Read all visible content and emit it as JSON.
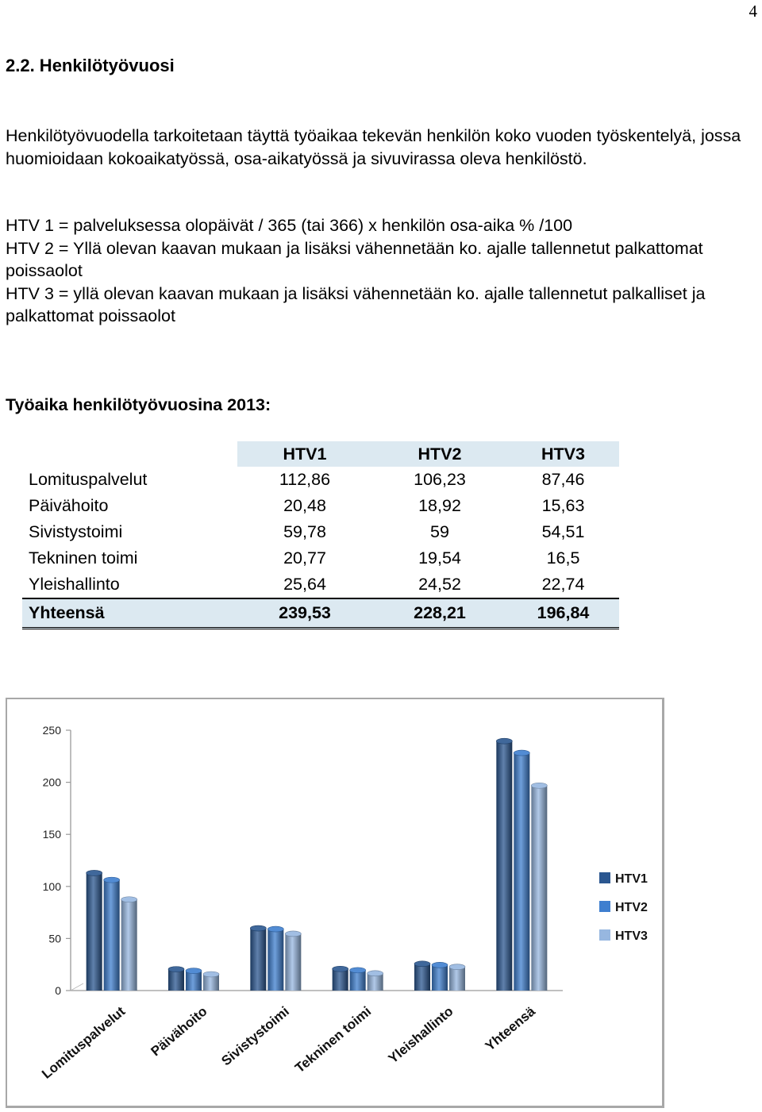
{
  "page_number": "4",
  "heading": "2.2. Henkilötyövuosi",
  "intro_paragraph": "Henkilötyövuodella tarkoitetaan täyttä työaikaa tekevän henkilön koko vuoden työskentelyä, jossa huomioidaan kokoaikatyössä, osa-aikatyössä ja sivuvirassa oleva henkilöstö.",
  "formulas": [
    "HTV 1 = palveluksessa olopäivät / 365 (tai 366) x henkilön osa-aika % /100",
    "HTV 2 = Yllä olevan kaavan mukaan ja lisäksi vähennetään ko. ajalle tallennetut palkattomat poissaolot",
    "HTV 3 = yllä olevan kaavan mukaan ja lisäksi vähennetään ko. ajalle tallennetut palkalliset ja palkattomat poissaolot"
  ],
  "table_title": "Työaika henkilötyövuosina 2013:",
  "table": {
    "headers": [
      "",
      "HTV1",
      "HTV2",
      "HTV3"
    ],
    "rows": [
      [
        "Lomituspalvelut",
        "112,86",
        "106,23",
        "87,46"
      ],
      [
        "Päivähoito",
        "20,48",
        "18,92",
        "15,63"
      ],
      [
        "Sivistystoimi",
        "59,78",
        "59",
        "54,51"
      ],
      [
        "Tekninen toimi",
        "20,77",
        "19,54",
        "16,5"
      ],
      [
        "Yleishallinto",
        "25,64",
        "24,52",
        "22,74"
      ]
    ],
    "total": [
      "Yhteensä",
      "239,53",
      "228,21",
      "196,84"
    ]
  },
  "chart_data": {
    "type": "bar",
    "title": "",
    "xlabel": "",
    "ylabel": "",
    "categories": [
      "Lomituspalvelut",
      "Päivähoito",
      "Sivistystoimi",
      "Tekninen toimi",
      "Yleishallinto",
      "Yhteensä"
    ],
    "series": [
      {
        "name": "HTV1",
        "values": [
          112.86,
          20.48,
          59.78,
          20.77,
          25.64,
          239.53
        ],
        "color": "#2b5790"
      },
      {
        "name": "HTV2",
        "values": [
          106.23,
          18.92,
          59,
          19.54,
          24.52,
          228.21
        ],
        "color": "#3f7fcf"
      },
      {
        "name": "HTV3",
        "values": [
          87.46,
          15.63,
          54.51,
          16.5,
          22.74,
          196.84
        ],
        "color": "#97b7e0"
      }
    ],
    "ylim": [
      0,
      250
    ],
    "yticks": [
      "0",
      "50",
      "100",
      "150",
      "200",
      "250"
    ],
    "grid": false,
    "legend": "right",
    "style": "3d-cylinder"
  }
}
